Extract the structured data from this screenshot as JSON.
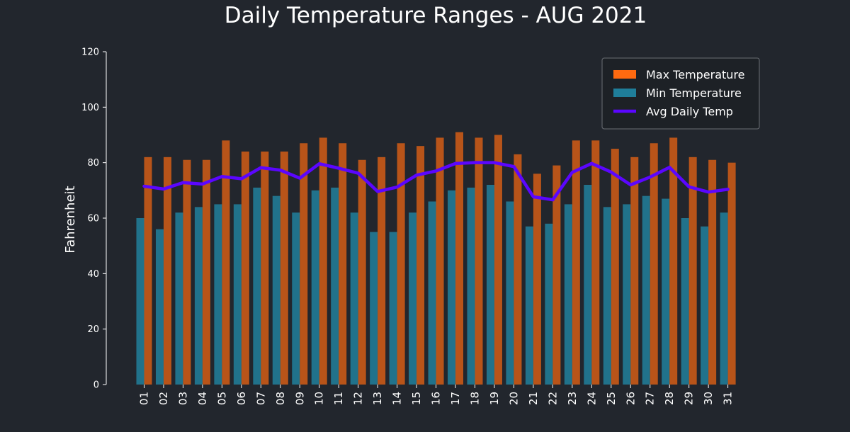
{
  "chart_data": {
    "type": "bar",
    "title": "Daily Temperature Ranges - AUG 2021",
    "xlabel": "",
    "ylabel": "Fahrenheit",
    "ylim": [
      0,
      120
    ],
    "yticks": [
      0,
      20,
      40,
      60,
      80,
      100,
      120
    ],
    "grid": false,
    "legend_position": "top-right",
    "categories": [
      "01",
      "02",
      "03",
      "04",
      "05",
      "06",
      "07",
      "08",
      "09",
      "10",
      "11",
      "12",
      "13",
      "14",
      "15",
      "16",
      "17",
      "18",
      "19",
      "20",
      "21",
      "22",
      "23",
      "24",
      "25",
      "26",
      "27",
      "28",
      "29",
      "30",
      "31"
    ],
    "series": [
      {
        "name": "Max Temperature",
        "type": "bar",
        "color": "#ff6a10",
        "values": [
          82,
          82,
          81,
          81,
          88,
          84,
          84,
          84,
          87,
          89,
          87,
          81,
          82,
          87,
          86,
          89,
          91,
          89,
          90,
          83,
          76,
          79,
          88,
          88,
          85,
          82,
          87,
          89,
          82,
          81,
          80
        ]
      },
      {
        "name": "Min Temperature",
        "type": "bar",
        "color": "#2196b8",
        "values": [
          60,
          56,
          62,
          64,
          65,
          65,
          71,
          68,
          62,
          70,
          71,
          62,
          55,
          55,
          62,
          66,
          70,
          71,
          72,
          66,
          57,
          58,
          65,
          72,
          64,
          65,
          68,
          67,
          60,
          57,
          62
        ]
      },
      {
        "name": "Avg Daily Temp",
        "type": "line",
        "color": "#5b06ff",
        "values": [
          71.5,
          70.5,
          72.8,
          72.3,
          75,
          74.2,
          78.2,
          77.3,
          74.4,
          79.6,
          78.0,
          76.2,
          69.6,
          71.2,
          75.5,
          77.0,
          79.7,
          80.0,
          80.0,
          78.6,
          67.7,
          66.6,
          76.5,
          79.7,
          76.6,
          72.0,
          74.8,
          78.3,
          71.3,
          69.4,
          70.4
        ]
      }
    ]
  }
}
